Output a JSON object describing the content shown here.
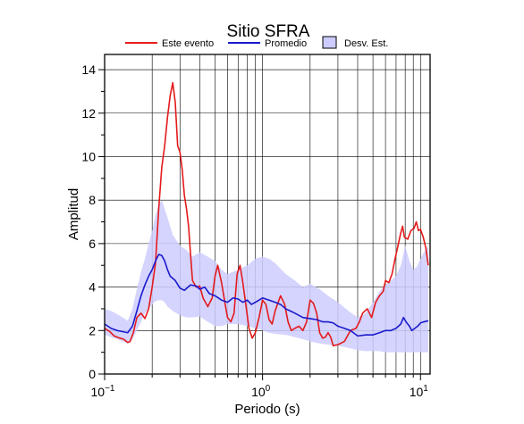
{
  "chart_data": {
    "type": "line",
    "title": "Sitio SFRA",
    "xlabel": "Periodo (s)",
    "ylabel": "Amplitud",
    "xscale": "log",
    "xlim": [
      0.1,
      11.5
    ],
    "ylim": [
      0,
      14.7
    ],
    "grid": true,
    "legend_position": "top",
    "x_ticks": [
      {
        "value": 0.1,
        "base": "10",
        "exp": "−1"
      },
      {
        "value": 1,
        "base": "10",
        "exp": "0"
      },
      {
        "value": 10,
        "base": "10",
        "exp": "1"
      }
    ],
    "y_ticks": [
      {
        "value": 0,
        "label": "0"
      },
      {
        "value": 2,
        "label": "2"
      },
      {
        "value": 4,
        "label": "4"
      },
      {
        "value": 6,
        "label": "6"
      },
      {
        "value": 8,
        "label": "8"
      },
      {
        "value": 10,
        "label": "10"
      },
      {
        "value": 12,
        "label": "12"
      },
      {
        "value": 14,
        "label": "14"
      }
    ],
    "legend": [
      {
        "label": "Este evento",
        "kind": "line",
        "color": "#e41a1c"
      },
      {
        "label": "Promedio",
        "kind": "line",
        "color": "#1a1acc"
      },
      {
        "label": "Desv. Est.",
        "kind": "box",
        "color": "#ccccff"
      }
    ],
    "series": [
      {
        "name": "Este evento",
        "color": "#e41a1c",
        "points": [
          [
            0.1,
            2.1
          ],
          [
            0.108,
            1.95
          ],
          [
            0.115,
            1.75
          ],
          [
            0.125,
            1.65
          ],
          [
            0.132,
            1.6
          ],
          [
            0.14,
            1.45
          ],
          [
            0.145,
            1.5
          ],
          [
            0.152,
            1.9
          ],
          [
            0.16,
            2.6
          ],
          [
            0.17,
            2.8
          ],
          [
            0.18,
            2.55
          ],
          [
            0.19,
            3.0
          ],
          [
            0.2,
            4.0
          ],
          [
            0.21,
            5.1
          ],
          [
            0.22,
            7.6
          ],
          [
            0.23,
            9.5
          ],
          [
            0.24,
            10.5
          ],
          [
            0.25,
            11.8
          ],
          [
            0.26,
            12.8
          ],
          [
            0.27,
            13.4
          ],
          [
            0.28,
            12.5
          ],
          [
            0.29,
            10.5
          ],
          [
            0.3,
            10.2
          ],
          [
            0.31,
            9.4
          ],
          [
            0.32,
            8.2
          ],
          [
            0.33,
            7.6
          ],
          [
            0.34,
            6.8
          ],
          [
            0.35,
            5.5
          ],
          [
            0.36,
            4.3
          ],
          [
            0.38,
            4.0
          ],
          [
            0.4,
            4.05
          ],
          [
            0.42,
            3.5
          ],
          [
            0.45,
            3.1
          ],
          [
            0.48,
            3.5
          ],
          [
            0.5,
            4.5
          ],
          [
            0.52,
            5.0
          ],
          [
            0.55,
            4.2
          ],
          [
            0.58,
            3.2
          ],
          [
            0.6,
            2.6
          ],
          [
            0.63,
            2.4
          ],
          [
            0.66,
            2.8
          ],
          [
            0.69,
            4.6
          ],
          [
            0.72,
            5.0
          ],
          [
            0.75,
            4.2
          ],
          [
            0.78,
            3.3
          ],
          [
            0.82,
            2.1
          ],
          [
            0.86,
            1.65
          ],
          [
            0.9,
            1.9
          ],
          [
            0.95,
            2.6
          ],
          [
            1.0,
            3.4
          ],
          [
            1.05,
            3.2
          ],
          [
            1.1,
            2.5
          ],
          [
            1.15,
            2.3
          ],
          [
            1.2,
            2.9
          ],
          [
            1.3,
            3.6
          ],
          [
            1.38,
            3.2
          ],
          [
            1.45,
            2.4
          ],
          [
            1.52,
            2.0
          ],
          [
            1.6,
            2.1
          ],
          [
            1.7,
            2.2
          ],
          [
            1.8,
            2.0
          ],
          [
            1.9,
            2.4
          ],
          [
            2.0,
            3.4
          ],
          [
            2.1,
            3.25
          ],
          [
            2.2,
            2.8
          ],
          [
            2.3,
            1.9
          ],
          [
            2.4,
            1.65
          ],
          [
            2.5,
            1.7
          ],
          [
            2.6,
            1.9
          ],
          [
            2.7,
            1.7
          ],
          [
            2.8,
            1.3
          ],
          [
            3.0,
            1.35
          ],
          [
            3.3,
            1.5
          ],
          [
            3.6,
            2.0
          ],
          [
            3.9,
            2.1
          ],
          [
            4.1,
            2.4
          ],
          [
            4.3,
            2.8
          ],
          [
            4.6,
            3.0
          ],
          [
            4.9,
            2.6
          ],
          [
            5.2,
            3.3
          ],
          [
            5.5,
            3.6
          ],
          [
            5.8,
            3.8
          ],
          [
            6.0,
            4.3
          ],
          [
            6.3,
            4.2
          ],
          [
            6.6,
            4.6
          ],
          [
            6.9,
            5.3
          ],
          [
            7.2,
            5.9
          ],
          [
            7.5,
            6.5
          ],
          [
            7.7,
            6.8
          ],
          [
            7.9,
            6.3
          ],
          [
            8.3,
            6.2
          ],
          [
            8.7,
            6.6
          ],
          [
            9.1,
            6.7
          ],
          [
            9.4,
            7.0
          ],
          [
            9.7,
            6.6
          ],
          [
            10.0,
            6.65
          ],
          [
            10.4,
            6.3
          ],
          [
            10.8,
            5.8
          ],
          [
            11.2,
            5.0
          ]
        ]
      },
      {
        "name": "Promedio",
        "color": "#1a1acc",
        "points": [
          [
            0.1,
            2.3
          ],
          [
            0.11,
            2.1
          ],
          [
            0.12,
            2.0
          ],
          [
            0.13,
            1.95
          ],
          [
            0.14,
            1.9
          ],
          [
            0.15,
            2.2
          ],
          [
            0.16,
            2.9
          ],
          [
            0.17,
            3.6
          ],
          [
            0.18,
            4.1
          ],
          [
            0.19,
            4.5
          ],
          [
            0.2,
            4.8
          ],
          [
            0.21,
            5.2
          ],
          [
            0.22,
            5.5
          ],
          [
            0.23,
            5.45
          ],
          [
            0.24,
            5.2
          ],
          [
            0.25,
            4.8
          ],
          [
            0.26,
            4.5
          ],
          [
            0.28,
            4.3
          ],
          [
            0.3,
            3.95
          ],
          [
            0.32,
            3.85
          ],
          [
            0.35,
            4.1
          ],
          [
            0.38,
            4.05
          ],
          [
            0.4,
            3.9
          ],
          [
            0.43,
            4.0
          ],
          [
            0.46,
            3.7
          ],
          [
            0.5,
            3.6
          ],
          [
            0.55,
            3.4
          ],
          [
            0.6,
            3.3
          ],
          [
            0.65,
            3.5
          ],
          [
            0.7,
            3.45
          ],
          [
            0.75,
            3.3
          ],
          [
            0.8,
            3.4
          ],
          [
            0.85,
            3.2
          ],
          [
            0.9,
            3.3
          ],
          [
            1.0,
            3.5
          ],
          [
            1.1,
            3.4
          ],
          [
            1.2,
            3.3
          ],
          [
            1.3,
            3.2
          ],
          [
            1.4,
            3.0
          ],
          [
            1.5,
            2.9
          ],
          [
            1.6,
            2.8
          ],
          [
            1.8,
            2.6
          ],
          [
            2.0,
            2.55
          ],
          [
            2.2,
            2.5
          ],
          [
            2.4,
            2.4
          ],
          [
            2.6,
            2.4
          ],
          [
            2.8,
            2.35
          ],
          [
            3.0,
            2.2
          ],
          [
            3.3,
            2.1
          ],
          [
            3.6,
            2.0
          ],
          [
            4.0,
            1.75
          ],
          [
            4.5,
            1.8
          ],
          [
            5.0,
            1.8
          ],
          [
            5.5,
            1.9
          ],
          [
            6.0,
            2.0
          ],
          [
            6.5,
            2.0
          ],
          [
            7.0,
            2.1
          ],
          [
            7.5,
            2.3
          ],
          [
            7.8,
            2.6
          ],
          [
            8.1,
            2.4
          ],
          [
            8.5,
            2.2
          ],
          [
            8.8,
            2.0
          ],
          [
            9.2,
            2.1
          ],
          [
            9.6,
            2.2
          ],
          [
            10.0,
            2.35
          ],
          [
            10.5,
            2.4
          ],
          [
            11.2,
            2.45
          ]
        ]
      }
    ],
    "band": {
      "name": "Desv. Est.",
      "color": "#ccccff",
      "upper": [
        [
          0.1,
          3.0
        ],
        [
          0.11,
          2.9
        ],
        [
          0.12,
          2.75
        ],
        [
          0.13,
          2.6
        ],
        [
          0.14,
          2.45
        ],
        [
          0.15,
          3.0
        ],
        [
          0.16,
          3.9
        ],
        [
          0.17,
          4.7
        ],
        [
          0.18,
          5.3
        ],
        [
          0.19,
          6.0
        ],
        [
          0.2,
          6.6
        ],
        [
          0.21,
          7.3
        ],
        [
          0.22,
          7.8
        ],
        [
          0.23,
          8.0
        ],
        [
          0.24,
          7.6
        ],
        [
          0.25,
          7.2
        ],
        [
          0.27,
          6.4
        ],
        [
          0.3,
          5.9
        ],
        [
          0.33,
          5.7
        ],
        [
          0.36,
          5.4
        ],
        [
          0.4,
          5.6
        ],
        [
          0.45,
          5.4
        ],
        [
          0.5,
          5.2
        ],
        [
          0.55,
          4.8
        ],
        [
          0.6,
          4.6
        ],
        [
          0.7,
          4.8
        ],
        [
          0.8,
          5.0
        ],
        [
          0.9,
          5.3
        ],
        [
          1.0,
          5.4
        ],
        [
          1.1,
          5.3
        ],
        [
          1.2,
          5.1
        ],
        [
          1.4,
          4.6
        ],
        [
          1.6,
          4.3
        ],
        [
          1.8,
          4.0
        ],
        [
          2.0,
          4.15
        ],
        [
          2.3,
          3.9
        ],
        [
          2.6,
          3.6
        ],
        [
          3.0,
          3.3
        ],
        [
          3.5,
          2.9
        ],
        [
          4.0,
          2.6
        ],
        [
          4.5,
          2.8
        ],
        [
          5.0,
          3.3
        ],
        [
          5.5,
          3.8
        ],
        [
          6.0,
          4.1
        ],
        [
          6.5,
          4.3
        ],
        [
          7.0,
          4.5
        ],
        [
          7.5,
          5.0
        ],
        [
          8.0,
          5.9
        ],
        [
          8.5,
          5.2
        ],
        [
          9.0,
          4.8
        ],
        [
          9.5,
          4.95
        ],
        [
          10.0,
          5.3
        ],
        [
          10.5,
          5.6
        ],
        [
          11.2,
          5.9
        ]
      ],
      "lower": [
        [
          0.1,
          1.8
        ],
        [
          0.11,
          1.7
        ],
        [
          0.12,
          1.6
        ],
        [
          0.13,
          1.5
        ],
        [
          0.14,
          1.4
        ],
        [
          0.15,
          1.6
        ],
        [
          0.16,
          2.0
        ],
        [
          0.17,
          2.4
        ],
        [
          0.18,
          2.8
        ],
        [
          0.19,
          3.0
        ],
        [
          0.2,
          3.2
        ],
        [
          0.21,
          3.35
        ],
        [
          0.22,
          3.4
        ],
        [
          0.23,
          3.4
        ],
        [
          0.24,
          3.3
        ],
        [
          0.25,
          3.1
        ],
        [
          0.27,
          2.9
        ],
        [
          0.3,
          2.7
        ],
        [
          0.33,
          2.6
        ],
        [
          0.36,
          2.6
        ],
        [
          0.4,
          2.65
        ],
        [
          0.45,
          2.4
        ],
        [
          0.5,
          2.2
        ],
        [
          0.55,
          2.2
        ],
        [
          0.6,
          2.3
        ],
        [
          0.7,
          2.3
        ],
        [
          0.8,
          2.2
        ],
        [
          0.9,
          2.1
        ],
        [
          1.0,
          2.0
        ],
        [
          1.1,
          1.9
        ],
        [
          1.2,
          1.85
        ],
        [
          1.4,
          1.8
        ],
        [
          1.6,
          1.7
        ],
        [
          1.8,
          1.6
        ],
        [
          2.0,
          1.5
        ],
        [
          2.3,
          1.4
        ],
        [
          2.6,
          1.35
        ],
        [
          3.0,
          1.3
        ],
        [
          3.5,
          1.2
        ],
        [
          4.0,
          1.1
        ],
        [
          4.5,
          1.05
        ],
        [
          5.0,
          1.05
        ],
        [
          5.5,
          1.05
        ],
        [
          6.0,
          1.0
        ],
        [
          6.5,
          1.0
        ],
        [
          7.0,
          1.0
        ],
        [
          7.5,
          1.0
        ],
        [
          8.0,
          1.0
        ],
        [
          8.5,
          1.0
        ],
        [
          9.0,
          1.0
        ],
        [
          9.5,
          1.0
        ],
        [
          10.0,
          1.0
        ],
        [
          10.5,
          1.0
        ],
        [
          11.2,
          1.0
        ]
      ]
    }
  }
}
